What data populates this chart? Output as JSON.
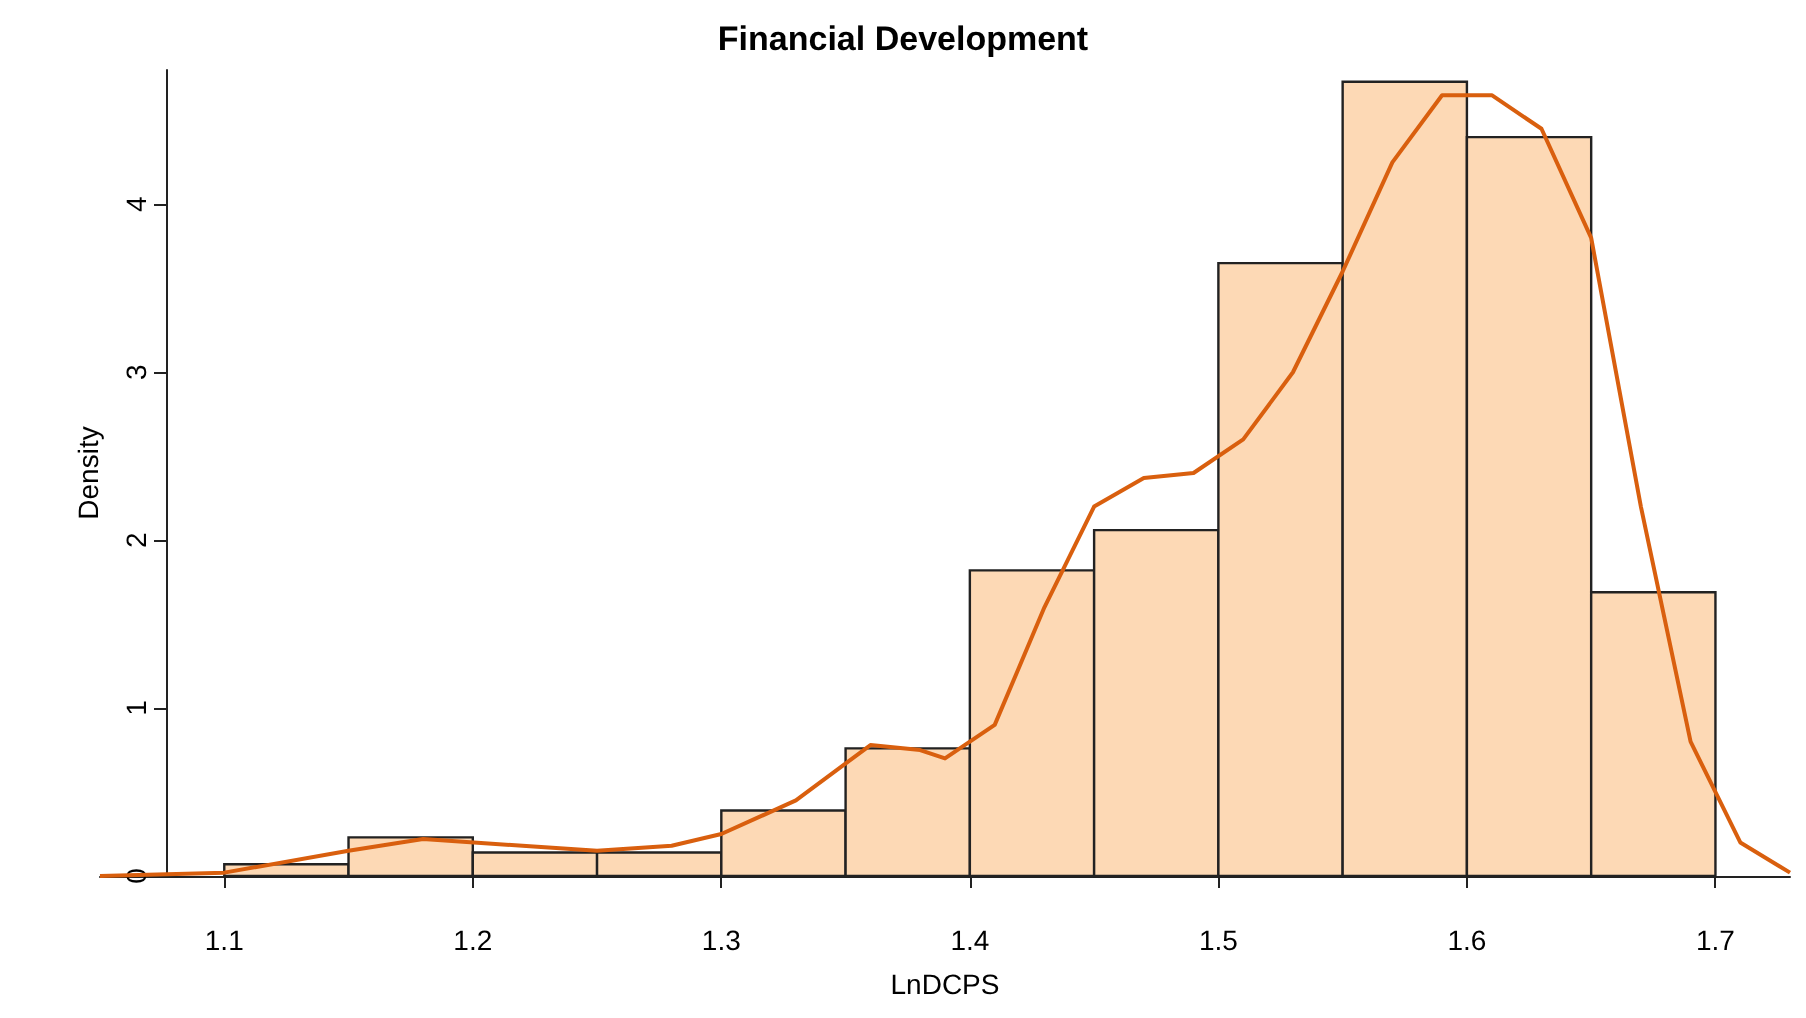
{
  "chart_data": {
    "type": "histogram",
    "title": "Financial Development",
    "xlabel": "LnDCPS",
    "ylabel": "Density",
    "xlim": [
      1.05,
      1.73
    ],
    "xticks": [
      1.1,
      1.2,
      1.3,
      1.4,
      1.5,
      1.6,
      1.7
    ],
    "ylim": [
      0,
      4.8
    ],
    "yticks": [
      0,
      1,
      2,
      3,
      4
    ],
    "grid": false,
    "series": [
      {
        "color": "#fdd9b5",
        "bins": [
          1.1,
          1.15,
          1.2,
          1.25,
          1.3,
          1.35,
          1.4,
          1.45,
          1.5,
          1.55,
          1.6,
          1.65,
          1.7
        ],
        "values": [
          0.07,
          0.23,
          0.14,
          0.14,
          0.39,
          0.76,
          1.82,
          2.06,
          3.65,
          4.73,
          4.4,
          1.69
        ]
      },
      {
        "type": "line",
        "color": "#d95f0e",
        "x": [
          1.05,
          1.1,
          1.15,
          1.18,
          1.22,
          1.25,
          1.28,
          1.3,
          1.33,
          1.36,
          1.38,
          1.39,
          1.41,
          1.43,
          1.45,
          1.47,
          1.49,
          1.51,
          1.53,
          1.55,
          1.57,
          1.59,
          1.61,
          1.63,
          1.65,
          1.67,
          1.69,
          1.71,
          1.73
        ],
        "values": [
          0,
          0.02,
          0.15,
          0.22,
          0.18,
          0.15,
          0.18,
          0.25,
          0.45,
          0.78,
          0.75,
          0.7,
          0.9,
          1.6,
          2.2,
          2.37,
          2.4,
          2.6,
          3.0,
          3.6,
          4.25,
          4.65,
          4.65,
          4.45,
          3.8,
          2.2,
          0.8,
          0.2,
          0.02
        ]
      }
    ]
  }
}
